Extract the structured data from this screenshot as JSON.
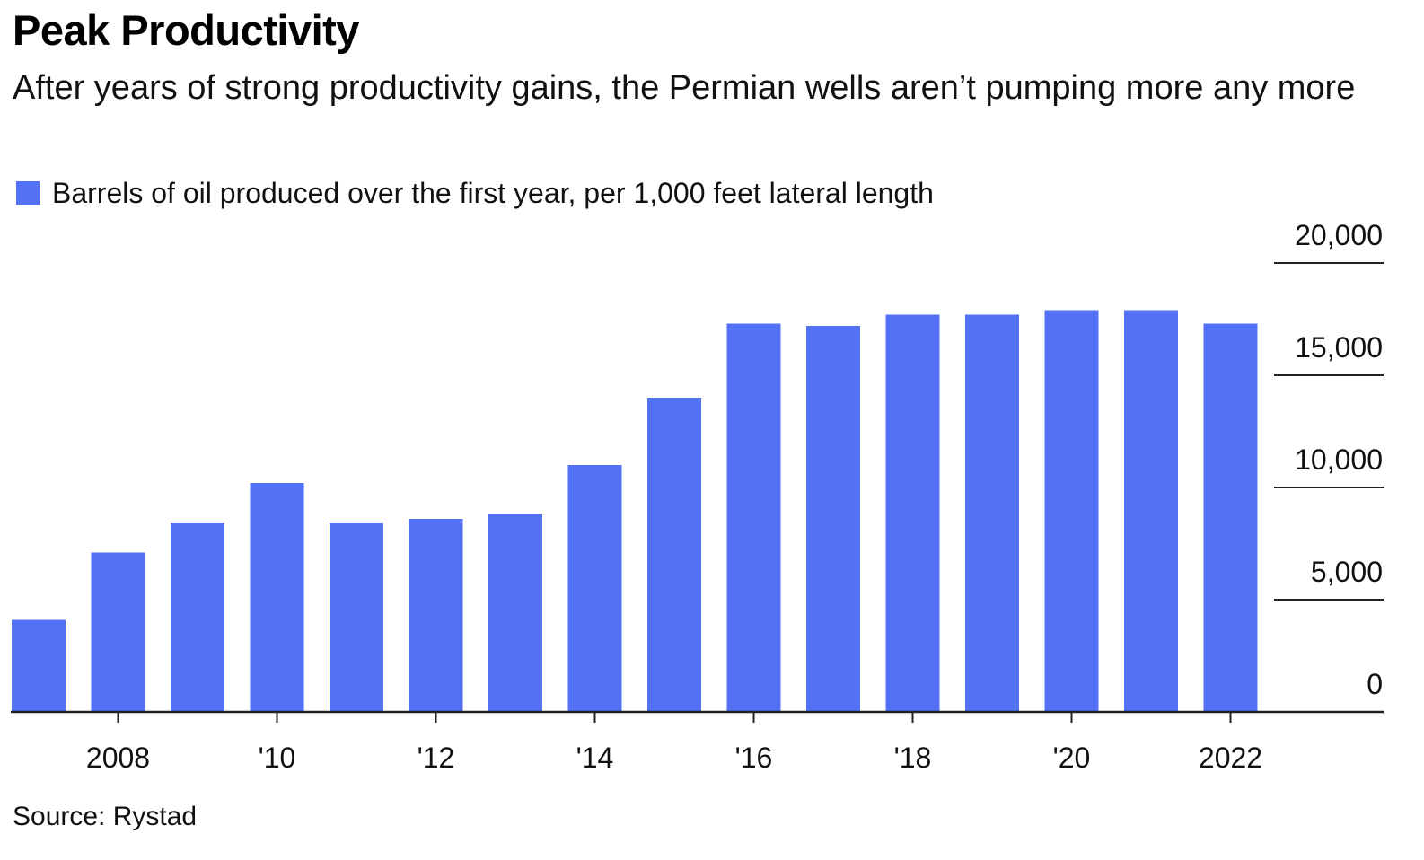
{
  "chart_data": {
    "type": "bar",
    "title": "Peak Productivity",
    "subtitle": "After years of strong productivity gains, the Permian wells aren’t pumping more any more",
    "source": "Source: Rystad",
    "categories": [
      "2007",
      "2008",
      "2009",
      "2010",
      "2011",
      "2012",
      "2013",
      "2014",
      "2015",
      "2016",
      "2017",
      "2018",
      "2019",
      "2020",
      "2021",
      "2022"
    ],
    "series": [
      {
        "name": "Barrels of oil produced over the first year, per 1,000 feet lateral length",
        "color": "#5271f5",
        "values": [
          4100,
          7100,
          8400,
          10200,
          8400,
          8600,
          8800,
          11000,
          14000,
          17300,
          17200,
          17700,
          17700,
          17900,
          17900,
          17300
        ]
      }
    ],
    "ylim": [
      0,
      20000
    ],
    "yticks": [
      0,
      5000,
      10000,
      15000,
      20000
    ],
    "ytick_labels": [
      "0",
      "5,000",
      "10,000",
      "15,000",
      "20,000"
    ],
    "xticks": [
      {
        "category": "2008",
        "label": "2008"
      },
      {
        "category": "2010",
        "label": "'10"
      },
      {
        "category": "2012",
        "label": "'12"
      },
      {
        "category": "2014",
        "label": "'14"
      },
      {
        "category": "2016",
        "label": "'16"
      },
      {
        "category": "2018",
        "label": "'18"
      },
      {
        "category": "2020",
        "label": "'20"
      },
      {
        "category": "2022",
        "label": "2022"
      }
    ],
    "legend_position": "top-left",
    "y_axis_position": "right",
    "grid": "short right-side tick lines",
    "axis_color": "#222222"
  }
}
